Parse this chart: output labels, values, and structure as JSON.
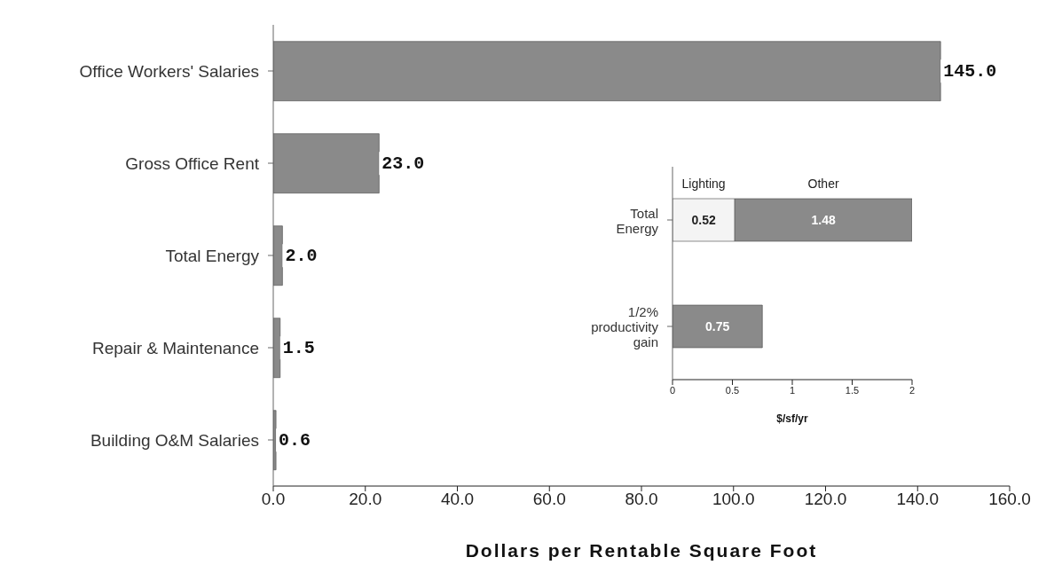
{
  "chart_data": [
    {
      "type": "bar",
      "orientation": "horizontal",
      "categories": [
        "Office Workers' Salaries",
        "Gross Office Rent",
        "Total Energy",
        "Repair & Maintenance",
        "Building O&M Salaries"
      ],
      "values": [
        145,
        23,
        2,
        1.5,
        0.6
      ],
      "color": "#8a8a8a",
      "value_labels": [
        "145.0",
        "23.0",
        "2.0",
        "1.5",
        "0.6"
      ],
      "xlim": [
        0,
        160
      ],
      "xticks": [
        {
          "value": 0,
          "label": "0.0"
        },
        {
          "value": 20,
          "label": "20.0"
        },
        {
          "value": 40,
          "label": "40.0"
        },
        {
          "value": 60,
          "label": "60.0"
        },
        {
          "value": 80,
          "label": "80.0"
        },
        {
          "value": 100,
          "label": "100.0"
        },
        {
          "value": 120,
          "label": "120.0"
        },
        {
          "value": 140,
          "label": "140.0"
        },
        {
          "value": 160,
          "label": "160.0"
        }
      ],
      "xlabel": "Dollars per Rentable Square Foot"
    },
    {
      "type": "bar",
      "orientation": "horizontal",
      "stacked": true,
      "categories": [
        "Total Energy",
        "1/2% productivity gain"
      ],
      "series": [
        {
          "name": "Lighting",
          "color": "#f4f4f4",
          "values": [
            0.52,
            null
          ],
          "value_labels": [
            "0.52",
            null
          ]
        },
        {
          "name": "Other",
          "color": "#8a8a8a",
          "values": [
            1.48,
            null
          ],
          "value_labels": [
            "1.48",
            null
          ]
        },
        {
          "color": "#8a8a8a",
          "values": [
            null,
            0.75
          ],
          "value_labels": [
            null,
            "0.75"
          ]
        }
      ],
      "xlim": [
        0,
        2
      ],
      "xticks": [
        0,
        0.5,
        1,
        1.5,
        2
      ],
      "xlabel": "$/sf/yr"
    }
  ]
}
